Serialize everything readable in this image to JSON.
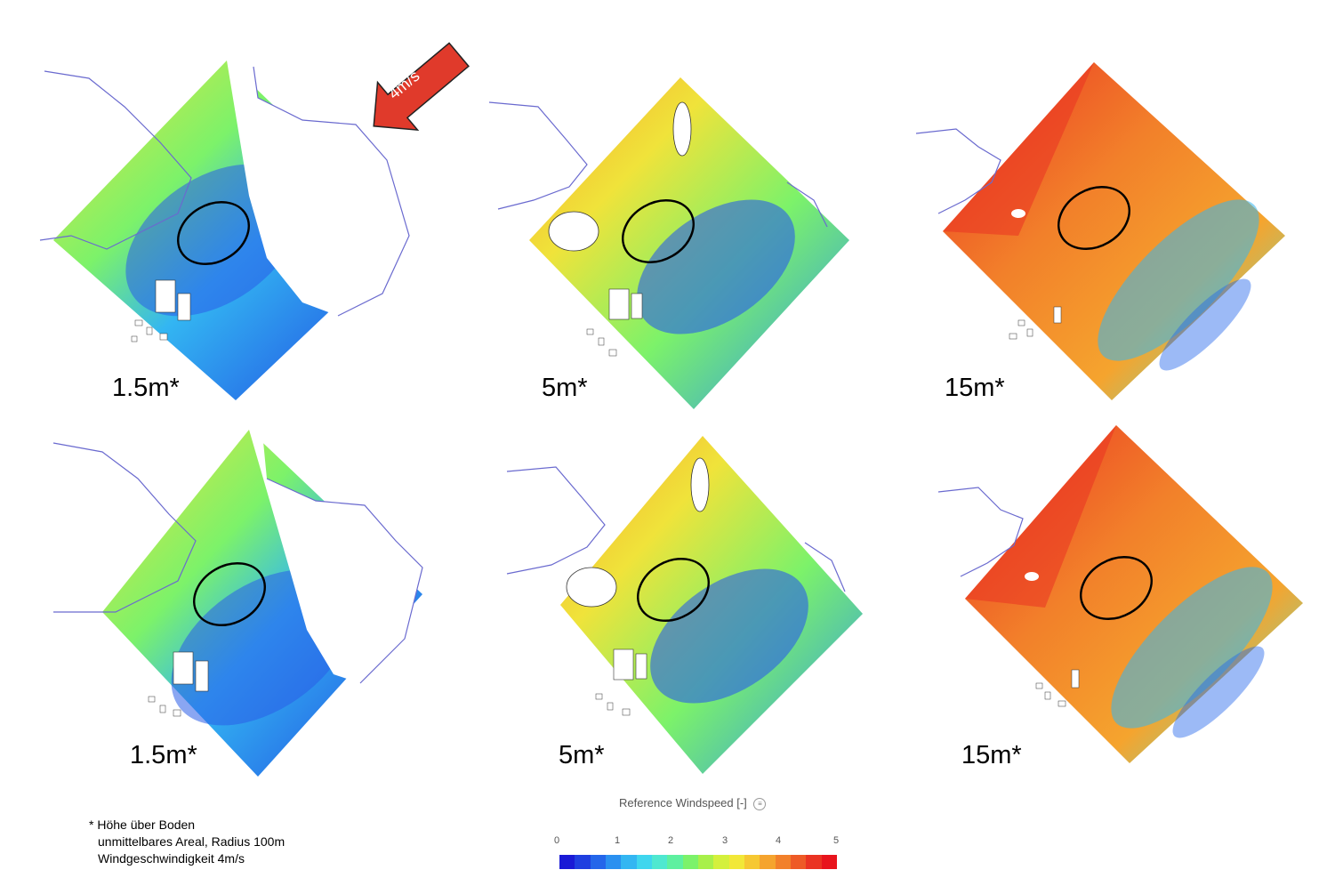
{
  "wind_arrow": {
    "label": "4m/s",
    "color": "#e03a2b"
  },
  "panels": [
    {
      "id": "top-left",
      "height_label": "1.5m*"
    },
    {
      "id": "top-middle",
      "height_label": "5m*"
    },
    {
      "id": "top-right",
      "height_label": "15m*"
    },
    {
      "id": "bottom-left",
      "height_label": "1.5m*"
    },
    {
      "id": "bottom-middle",
      "height_label": "5m*"
    },
    {
      "id": "bottom-right",
      "height_label": "15m*"
    }
  ],
  "footnote": {
    "line1": "* Höhe über Boden",
    "line2": "unmittelbares Areal, Radius 100m",
    "line3": "Windgeschwindigkeit 4m/s"
  },
  "legend": {
    "title": "Reference Windspeed [-]",
    "ticks": [
      "0",
      "1",
      "2",
      "3",
      "4",
      "5"
    ],
    "colors": [
      "#1a1ad6",
      "#1f3fe0",
      "#2466ea",
      "#2a90f0",
      "#33b6f2",
      "#3fd6ee",
      "#4fe8d0",
      "#5ef0a0",
      "#7cf26a",
      "#a8f04a",
      "#d4f03c",
      "#f2e838",
      "#f6c832",
      "#f5a42e",
      "#f2802a",
      "#ee5a26",
      "#ea3322",
      "#e8141c"
    ]
  },
  "colors": {
    "low": "#1f3fe0",
    "mid": "#7cf26a",
    "high": "#ea3322",
    "outline": "#6a6acf"
  }
}
